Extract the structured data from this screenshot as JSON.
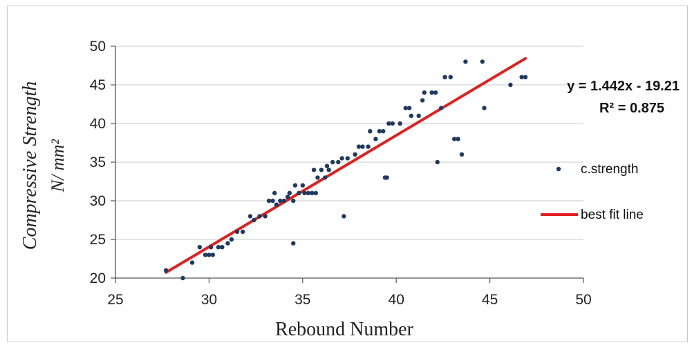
{
  "chart_data": {
    "type": "scatter",
    "xlabel": "Rebound Number",
    "ylabel_line1": "Compressive Strength",
    "ylabel_line2": "N/ mm²",
    "xlim": [
      25,
      50
    ],
    "ylim": [
      20,
      50
    ],
    "x_ticks": [
      "25",
      "30",
      "35",
      "40",
      "45",
      "50"
    ],
    "y_ticks": [
      "20",
      "25",
      "30",
      "35",
      "40",
      "45",
      "50"
    ],
    "grid": "horizontal",
    "legend_placement": "right",
    "equation": "y = 1.442x - 19.21",
    "r_squared": "R² = 0.875",
    "colors": {
      "points": "#1f3a5f",
      "fit_line": "#e02020",
      "grid": "#c8c8c8"
    },
    "series": [
      {
        "name": "c.strength",
        "type": "scatter",
        "points": [
          [
            27.7,
            21
          ],
          [
            28.6,
            20
          ],
          [
            29.1,
            22
          ],
          [
            29.5,
            24
          ],
          [
            29.8,
            23
          ],
          [
            30.0,
            23
          ],
          [
            30.1,
            24
          ],
          [
            30.2,
            23
          ],
          [
            30.5,
            24
          ],
          [
            30.7,
            24
          ],
          [
            31.0,
            24.5
          ],
          [
            31.2,
            25
          ],
          [
            31.5,
            26
          ],
          [
            31.8,
            26
          ],
          [
            32.2,
            28
          ],
          [
            32.4,
            27.5
          ],
          [
            32.7,
            28
          ],
          [
            33.0,
            28
          ],
          [
            33.2,
            30
          ],
          [
            33.4,
            30
          ],
          [
            33.5,
            31
          ],
          [
            33.6,
            29.5
          ],
          [
            33.8,
            30
          ],
          [
            34.0,
            30
          ],
          [
            34.2,
            30.5
          ],
          [
            34.3,
            31
          ],
          [
            34.5,
            30
          ],
          [
            34.5,
            24.5
          ],
          [
            34.6,
            32
          ],
          [
            34.8,
            31
          ],
          [
            35.0,
            32
          ],
          [
            35.1,
            31
          ],
          [
            35.3,
            31
          ],
          [
            35.5,
            31
          ],
          [
            35.6,
            34
          ],
          [
            35.7,
            31
          ],
          [
            35.8,
            33
          ],
          [
            36.0,
            34
          ],
          [
            36.2,
            33
          ],
          [
            36.3,
            34.5
          ],
          [
            36.4,
            34
          ],
          [
            36.6,
            35
          ],
          [
            36.9,
            35
          ],
          [
            37.1,
            35.5
          ],
          [
            37.2,
            28
          ],
          [
            37.4,
            35.5
          ],
          [
            37.8,
            36
          ],
          [
            38.0,
            37
          ],
          [
            38.2,
            37
          ],
          [
            38.5,
            37
          ],
          [
            38.6,
            39
          ],
          [
            38.9,
            38
          ],
          [
            39.1,
            39
          ],
          [
            39.3,
            39
          ],
          [
            39.4,
            33
          ],
          [
            39.5,
            33
          ],
          [
            39.6,
            40
          ],
          [
            39.8,
            40
          ],
          [
            40.2,
            40
          ],
          [
            40.5,
            42
          ],
          [
            40.7,
            42
          ],
          [
            40.8,
            41
          ],
          [
            41.2,
            41
          ],
          [
            41.4,
            43
          ],
          [
            41.5,
            44
          ],
          [
            41.9,
            44
          ],
          [
            42.1,
            44
          ],
          [
            42.2,
            35
          ],
          [
            42.4,
            42
          ],
          [
            42.6,
            46
          ],
          [
            42.9,
            46
          ],
          [
            43.1,
            38
          ],
          [
            43.3,
            38
          ],
          [
            43.5,
            36
          ],
          [
            43.7,
            48
          ],
          [
            44.6,
            48
          ],
          [
            44.7,
            42
          ],
          [
            46.1,
            45
          ],
          [
            46.7,
            46
          ],
          [
            46.9,
            46
          ]
        ]
      },
      {
        "name": "best fit line",
        "type": "line",
        "points": [
          [
            27.7,
            20.73
          ],
          [
            46.9,
            48.42
          ]
        ]
      }
    ]
  }
}
